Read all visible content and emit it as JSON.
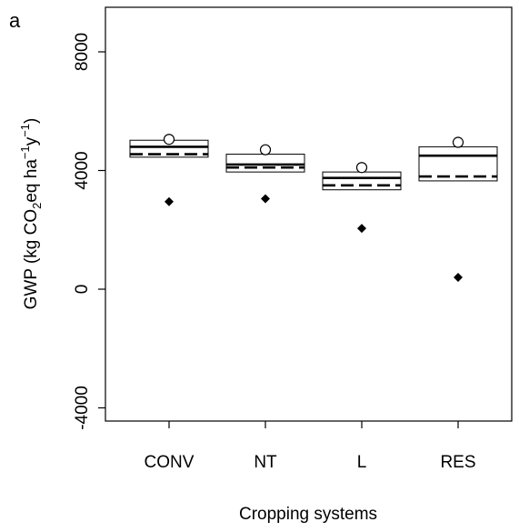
{
  "chart_data": {
    "type": "boxplot",
    "panel_label": "a",
    "xlabel": "Cropping systems",
    "ylabel": {
      "prefix": "GWP (kg CO",
      "sub": "2",
      "mid1": "eq ha",
      "sup1": "−1",
      "mid2": "y",
      "sup2": "−1",
      "suffix": ")"
    },
    "ylim": [
      -4500,
      9500
    ],
    "yticks": [
      -4000,
      0,
      4000,
      8000
    ],
    "ytick_labels": [
      "-4000",
      "0",
      "4000",
      "8000"
    ],
    "categories": [
      "CONV",
      "NT",
      "L",
      "RES"
    ],
    "boxes": [
      {
        "q1": 4450,
        "q3": 5020,
        "median": 4800,
        "mean": 4550,
        "outlier_high": 5050,
        "point_low": 2950
      },
      {
        "q1": 3950,
        "q3": 4550,
        "median": 4200,
        "mean": 4100,
        "outlier_high": 4700,
        "point_low": 3050
      },
      {
        "q1": 3350,
        "q3": 3950,
        "median": 3750,
        "mean": 3500,
        "outlier_high": 4100,
        "point_low": 2050
      },
      {
        "q1": 3650,
        "q3": 4800,
        "median": 4500,
        "mean": 3800,
        "outlier_high": 4950,
        "point_low": 400
      }
    ],
    "grid": false,
    "legend": "none"
  }
}
